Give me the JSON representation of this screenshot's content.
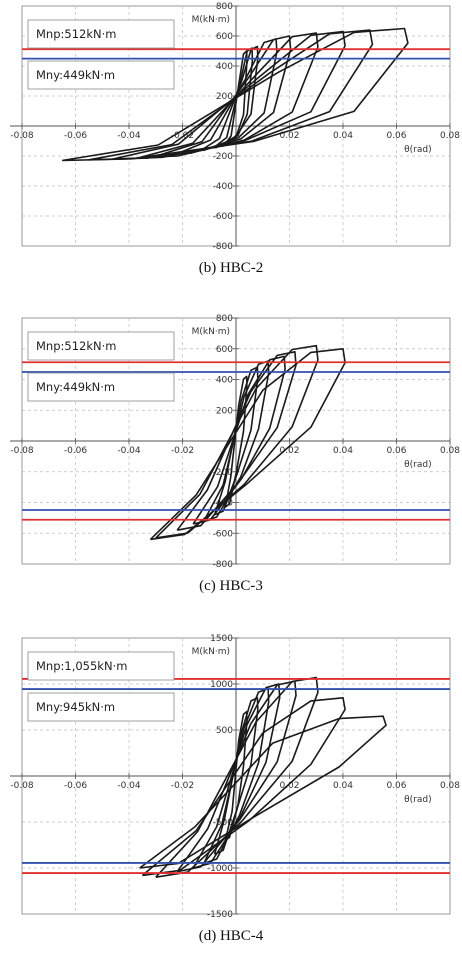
{
  "chart_data": [
    {
      "type": "line",
      "caption": "(b)  HBC-2",
      "ylabel": "M(kN·m)",
      "xlabel": "θ(rad)",
      "xlim": [
        -0.08,
        0.08
      ],
      "ylim": [
        -800,
        800
      ],
      "xticks": [
        -0.08,
        -0.06,
        -0.04,
        -0.02,
        0,
        0.02,
        0.04,
        0.06,
        0.08
      ],
      "xtick_labels": [
        "-0.08",
        "-0.06",
        "-0.04",
        "-0.02",
        "",
        "0.02",
        "0.04",
        "0.06",
        "0.08"
      ],
      "yticks": [
        800,
        600,
        400,
        200,
        0,
        -200,
        -400,
        -600,
        -800
      ],
      "ytick_labels": [
        "800",
        "600",
        "400",
        "200",
        "",
        "-200",
        "-400",
        "-600",
        "-800"
      ],
      "ref_lines": [
        {
          "label": "Mnp:512kN·m",
          "value": 512,
          "color": "#e03030"
        },
        {
          "label": "Mny:449kN·m",
          "value": 449,
          "color": "#3050b0"
        }
      ],
      "loops": [
        {
          "pos": [
            0.004,
            500
          ],
          "neg": [
            -0.004,
            -120
          ]
        },
        {
          "pos": [
            0.006,
            520
          ],
          "neg": [
            -0.008,
            -140
          ]
        },
        {
          "pos": [
            0.008,
            530
          ],
          "neg": [
            -0.012,
            -150
          ]
        },
        {
          "pos": [
            0.015,
            580
          ],
          "neg": [
            -0.02,
            -170
          ]
        },
        {
          "pos": [
            0.02,
            600
          ],
          "neg": [
            -0.028,
            -190
          ]
        },
        {
          "pos": [
            0.03,
            620
          ],
          "neg": [
            -0.036,
            -210
          ]
        },
        {
          "pos": [
            0.04,
            630
          ],
          "neg": [
            -0.046,
            -220
          ]
        },
        {
          "pos": [
            0.05,
            640
          ],
          "neg": [
            -0.055,
            -225
          ]
        },
        {
          "pos": [
            0.063,
            650
          ],
          "neg": [
            -0.065,
            -230
          ]
        }
      ]
    },
    {
      "type": "line",
      "caption": "(c)  HBC-3",
      "ylabel": "M(kN·m)",
      "xlabel": "θ(rad)",
      "xlim": [
        -0.08,
        0.08
      ],
      "ylim": [
        -800,
        800
      ],
      "xticks": [
        -0.08,
        -0.06,
        -0.04,
        -0.02,
        0,
        0.02,
        0.04,
        0.06,
        0.08
      ],
      "xtick_labels": [
        "-0.08",
        "-0.06",
        "-0.04",
        "-0.02",
        "",
        "0.02",
        "0.04",
        "0.06",
        "0.08"
      ],
      "yticks": [
        800,
        600,
        400,
        200,
        0,
        -200,
        -400,
        -600,
        -800
      ],
      "ytick_labels": [
        "800",
        "600",
        "400",
        "200",
        "",
        "-200",
        "-400",
        "-600",
        "-800"
      ],
      "ref_lines": [
        {
          "label": "Mnp:512kN·m",
          "value": 512,
          "color": "#e03030"
        },
        {
          "label": "Mny:449kN·m",
          "value": 449,
          "color": "#3050b0"
        }
      ],
      "neg_ref_lines": [
        {
          "value": -449,
          "color": "#3050b0"
        },
        {
          "value": -512,
          "color": "#e03030"
        }
      ],
      "loops": [
        {
          "pos": [
            0.004,
            420
          ],
          "neg": [
            -0.004,
            -430
          ]
        },
        {
          "pos": [
            0.008,
            480
          ],
          "neg": [
            -0.008,
            -480
          ]
        },
        {
          "pos": [
            0.012,
            520
          ],
          "neg": [
            -0.012,
            -520
          ]
        },
        {
          "pos": [
            0.018,
            550
          ],
          "neg": [
            -0.016,
            -540
          ]
        },
        {
          "pos": [
            0.022,
            580
          ],
          "neg": [
            -0.022,
            -580
          ]
        },
        {
          "pos": [
            0.03,
            620
          ],
          "neg": [
            -0.03,
            -630
          ]
        },
        {
          "pos": [
            0.04,
            600
          ],
          "neg": [
            -0.032,
            -640
          ]
        }
      ]
    },
    {
      "type": "line",
      "caption": "(d)  HBC-4",
      "ylabel": "M(kN·m)",
      "xlabel": "θ(rad)",
      "xlim": [
        -0.08,
        0.08
      ],
      "ylim": [
        -1500,
        1500
      ],
      "xticks": [
        -0.08,
        -0.06,
        -0.04,
        -0.02,
        0,
        0.02,
        0.04,
        0.06,
        0.08
      ],
      "xtick_labels": [
        "-0.08",
        "-0.06",
        "-0.04",
        "-0.02",
        "",
        "0.02",
        "0.04",
        "0.06",
        "0.08"
      ],
      "yticks": [
        1500,
        1000,
        500,
        0,
        -500,
        -1000,
        -1500
      ],
      "ytick_labels": [
        "1500",
        "1000",
        "500",
        "",
        "-500",
        "-1000",
        "-1500"
      ],
      "ref_lines": [
        {
          "label": "Mnp:1,055kN·m",
          "value": 1055,
          "color": "#e03030"
        },
        {
          "label": "Mny:945kN·m",
          "value": 945,
          "color": "#3050b0"
        }
      ],
      "neg_ref_lines": [
        {
          "value": -945,
          "color": "#3050b0"
        },
        {
          "value": -1055,
          "color": "#e03030"
        }
      ],
      "loops": [
        {
          "pos": [
            0.004,
            700
          ],
          "neg": [
            -0.004,
            -700
          ]
        },
        {
          "pos": [
            0.008,
            850
          ],
          "neg": [
            -0.008,
            -850
          ]
        },
        {
          "pos": [
            0.012,
            950
          ],
          "neg": [
            -0.012,
            -950
          ]
        },
        {
          "pos": [
            0.016,
            1000
          ],
          "neg": [
            -0.016,
            -1000
          ]
        },
        {
          "pos": [
            0.022,
            1030
          ],
          "neg": [
            -0.022,
            -1040
          ]
        },
        {
          "pos": [
            0.03,
            1070
          ],
          "neg": [
            -0.03,
            -1100
          ]
        },
        {
          "pos": [
            0.04,
            850
          ],
          "neg": [
            -0.035,
            -1080
          ]
        },
        {
          "pos": [
            0.055,
            650
          ],
          "neg": [
            -0.036,
            -1000
          ]
        }
      ]
    }
  ]
}
